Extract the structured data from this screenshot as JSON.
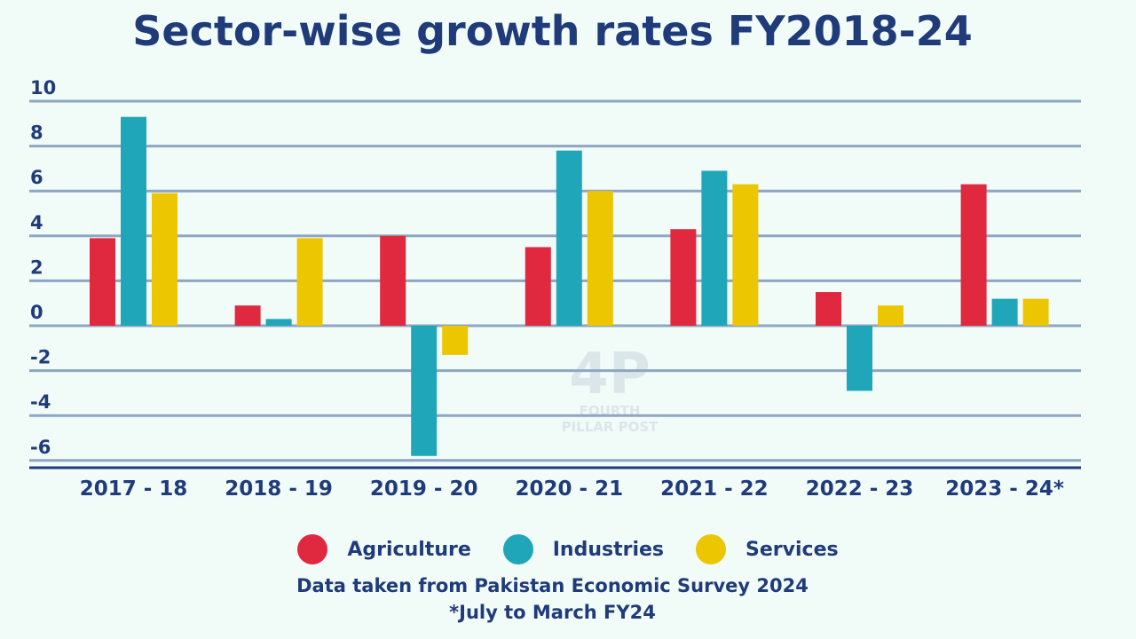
{
  "title": "Sector-wise growth rates FY2018-24",
  "chart_data": {
    "type": "bar",
    "title": "Sector-wise growth rates FY2018-24",
    "categories": [
      "2017 - 18",
      "2018 - 19",
      "2019 - 20",
      "2020 - 21",
      "2021 - 22",
      "2022 - 23",
      "2023 - 24*"
    ],
    "series": [
      {
        "name": "Agriculture",
        "color": "#e0283f",
        "values": [
          3.9,
          0.9,
          4.0,
          3.5,
          4.3,
          1.5,
          6.3
        ]
      },
      {
        "name": "Industries",
        "color": "#1fa6b8",
        "values": [
          9.3,
          0.3,
          -5.8,
          7.8,
          6.9,
          -2.9,
          1.2
        ]
      },
      {
        "name": "Services",
        "color": "#ecc600",
        "values": [
          5.9,
          3.9,
          -1.3,
          6.0,
          6.3,
          0.9,
          1.2
        ]
      }
    ],
    "yticks": [
      10,
      8,
      6,
      4,
      2,
      0,
      -2,
      -4,
      -6
    ],
    "ylim": [
      -6.5,
      10
    ],
    "grid": true,
    "legend_position": "bottom"
  },
  "legend": [
    {
      "label": "Agriculture",
      "color": "#e0283f"
    },
    {
      "label": "Industries",
      "color": "#1fa6b8"
    },
    {
      "label": "Services",
      "color": "#ecc600"
    }
  ],
  "source_note": "Data taken from Pakistan Economic Survey 2024",
  "footnote": "*July to March FY24",
  "watermark": {
    "line1": "FOURTH",
    "line2": "PILLAR POST"
  }
}
